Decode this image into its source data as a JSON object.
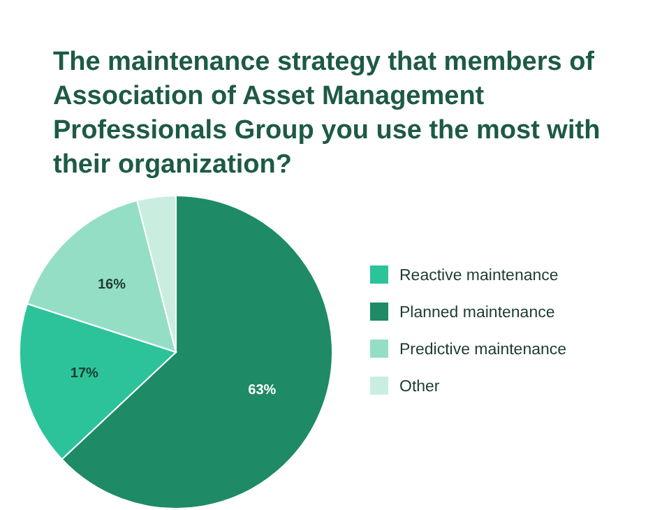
{
  "chart_data": {
    "type": "pie",
    "title": "The maintenance strategy that members of Association of Asset Management Professionals Group you use the most with their organization?",
    "categories": [
      "Reactive maintenance",
      "Planned maintenance",
      "Predictive maintenance",
      "Other"
    ],
    "values": [
      17,
      63,
      16,
      4
    ],
    "colors": [
      "#2cc39a",
      "#1e8a66",
      "#95dec6",
      "#c9eedf"
    ],
    "value_labels": [
      "17%",
      "63%",
      "16%",
      null
    ],
    "legend": "right"
  }
}
